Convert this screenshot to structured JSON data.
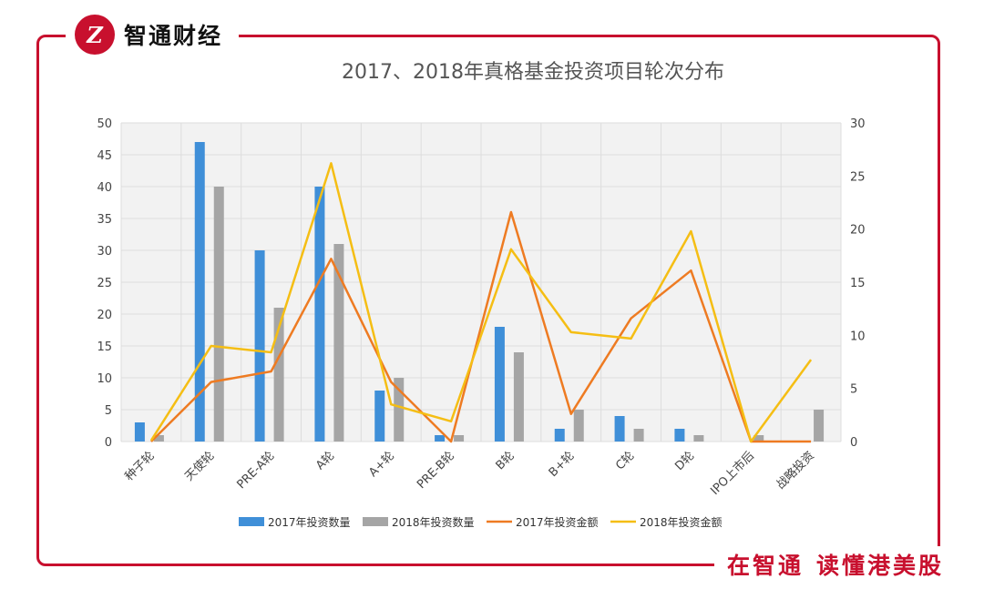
{
  "brand": {
    "mark": "Z",
    "name": "智通财经"
  },
  "slogan": {
    "part1": "在智通",
    "part2": "读懂港美股"
  },
  "chart_data": {
    "type": "bar",
    "title": "2017、2018年真格基金投资项目轮次分布",
    "categories": [
      "种子轮",
      "天使轮",
      "PRE-A轮",
      "A轮",
      "A+轮",
      "PRE-B轮",
      "B轮",
      "B+轮",
      "C轮",
      "D轮",
      "IPO上市后",
      "战略投资"
    ],
    "ylim_left": [
      0,
      50
    ],
    "ylim_right": [
      0,
      30
    ],
    "yticks_left": [
      0,
      5,
      10,
      15,
      20,
      25,
      30,
      35,
      40,
      45,
      50
    ],
    "yticks_right": [
      0,
      5,
      10,
      15,
      20,
      25,
      30
    ],
    "grid": true,
    "legend_position": "bottom",
    "series": [
      {
        "name": "2017年投资数量",
        "kind": "bar",
        "axis": "left",
        "color": "#3f8fd8",
        "values": [
          3,
          47,
          30,
          40,
          8,
          1,
          18,
          2,
          4,
          2,
          0,
          0
        ]
      },
      {
        "name": "2018年投资数量",
        "kind": "bar",
        "axis": "left",
        "color": "#a5a5a5",
        "values": [
          1,
          40,
          21,
          31,
          10,
          1,
          14,
          5,
          2,
          1,
          1,
          5
        ]
      },
      {
        "name": "2017年投资金额",
        "kind": "line",
        "axis": "right",
        "color": "#ee7b22",
        "values": [
          0,
          5.6,
          6.6,
          17.2,
          5.6,
          0,
          21.6,
          2.6,
          11.6,
          16.1,
          0,
          0
        ]
      },
      {
        "name": "2018年投资金额",
        "kind": "line",
        "axis": "right",
        "color": "#f5be14",
        "values": [
          0.1,
          9,
          8.4,
          26.2,
          3.5,
          1.9,
          18.1,
          10.3,
          9.7,
          19.8,
          0,
          7.7
        ]
      }
    ]
  }
}
